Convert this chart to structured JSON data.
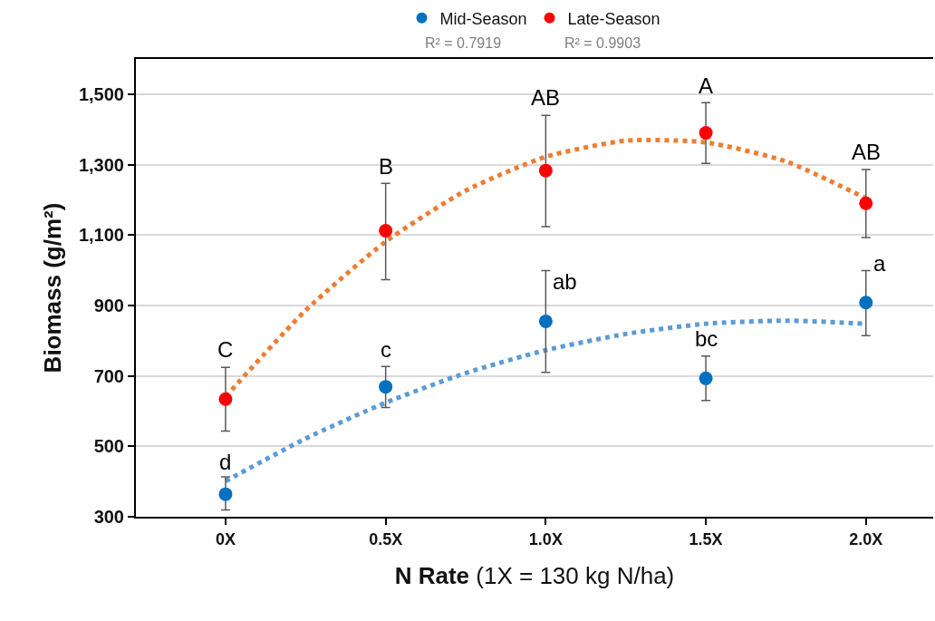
{
  "chart_data": {
    "type": "scatter",
    "xlabel": "N Rate (1X = 130 kg N/ha)",
    "ylabel": "Biomass (g/m²)",
    "x": [
      0,
      0.5,
      1.0,
      1.5,
      2.0
    ],
    "xlim": [
      -0.28,
      2.21
    ],
    "xticks": [
      {
        "value": 0,
        "label": "0X"
      },
      {
        "value": 0.5,
        "label": "0.5X"
      },
      {
        "value": 1.0,
        "label": "1.0X"
      },
      {
        "value": 1.5,
        "label": "1.5X"
      },
      {
        "value": 2.0,
        "label": "2.0X"
      }
    ],
    "ylim": [
      300,
      1600
    ],
    "yticks": [
      {
        "value": 300,
        "label": "300"
      },
      {
        "value": 500,
        "label": "500"
      },
      {
        "value": 700,
        "label": "700"
      },
      {
        "value": 900,
        "label": "900"
      },
      {
        "value": 1100,
        "label": "1,100"
      },
      {
        "value": 1300,
        "label": "1,300"
      },
      {
        "value": 1500,
        "label": "1,500"
      }
    ],
    "grid": "y",
    "legend": "top",
    "marker": "circle",
    "series": [
      {
        "name": "Mid-Season",
        "color": "#0070c0",
        "values": [
          364,
          669,
          855,
          693,
          908
        ],
        "errors": [
          [
            319,
            413
          ],
          [
            610,
            727
          ],
          [
            710,
            999
          ],
          [
            630,
            756
          ],
          [
            814,
            999
          ]
        ]
      },
      {
        "name": "Late-Season",
        "color": "#ff0000",
        "values": [
          634,
          1112,
          1283,
          1390,
          1190
        ],
        "errors": [
          [
            543,
            724
          ],
          [
            973,
            1247
          ],
          [
            1124,
            1440
          ],
          [
            1303,
            1476
          ],
          [
            1093,
            1286
          ]
        ]
      },
      {
        "type": "line",
        "marker": "none",
        "line_style": "dotted",
        "color": "#5b9bd5",
        "x": [
          0,
          0.25,
          0.5,
          0.75,
          1.0,
          1.25,
          1.5,
          1.75,
          2.0
        ],
        "values": [
          401,
          522,
          624,
          708,
          773,
          819,
          848,
          857,
          848
        ]
      },
      {
        "type": "line",
        "marker": "none",
        "line_style": "dotted",
        "color": "#ed7d31",
        "x": [
          0,
          0.25,
          0.5,
          0.75,
          1.0,
          1.25,
          1.5,
          1.75,
          2.0
        ],
        "values": [
          641,
          886,
          1081,
          1226,
          1322,
          1368,
          1363,
          1309,
          1204
        ]
      }
    ],
    "annotations": [
      {
        "text": "d",
        "x": 0,
        "y": 415
      },
      {
        "text": "C",
        "x": 0,
        "y": 735
      },
      {
        "text": "c",
        "x": 0.5,
        "y": 735
      },
      {
        "text": "B",
        "x": 0.5,
        "y": 1255
      },
      {
        "text": "ab",
        "x": 1.0,
        "y": 855
      },
      {
        "text": "AB",
        "x": 1.0,
        "y": 1450
      },
      {
        "text": "bc",
        "x": 1.5,
        "y": 765
      },
      {
        "text": "A",
        "x": 1.5,
        "y": 1485
      },
      {
        "text": "a",
        "x": 2.0,
        "y": 908
      },
      {
        "text": "AB",
        "x": 2.0,
        "y": 1295
      },
      "R² = 0.7919",
      "R² = 0.9903"
    ]
  }
}
